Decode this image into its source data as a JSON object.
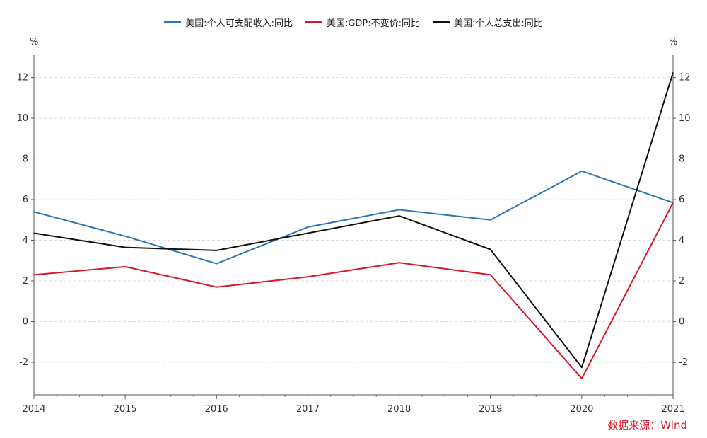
{
  "chart_data": {
    "type": "line",
    "x": [
      "2014",
      "2015",
      "2016",
      "2017",
      "2018",
      "2019",
      "2020",
      "2021"
    ],
    "series": [
      {
        "name": "美国:个人可支配收入:同比",
        "color": "#2e75b6",
        "values": [
          5.4,
          4.2,
          2.85,
          4.65,
          5.5,
          5.0,
          7.4,
          5.85
        ]
      },
      {
        "name": "美国:GDP:不变价:同比",
        "color": "#d7182a",
        "values": [
          2.3,
          2.7,
          1.7,
          2.2,
          2.9,
          2.3,
          -2.8,
          5.85
        ]
      },
      {
        "name": "美国:个人总支出:同比",
        "color": "#111111",
        "values": [
          4.35,
          3.65,
          3.5,
          4.35,
          5.2,
          3.55,
          -2.25,
          12.25
        ]
      }
    ],
    "ylim": [
      -3.6,
      13.1
    ],
    "yticks": [
      -2,
      0,
      2,
      4,
      6,
      8,
      10,
      12
    ],
    "y_unit_left": "%",
    "y_unit_right": "%",
    "grid": true,
    "legend_position": "top-center"
  },
  "source": {
    "text": "数据来源：Wind",
    "color": "#d7182a"
  }
}
